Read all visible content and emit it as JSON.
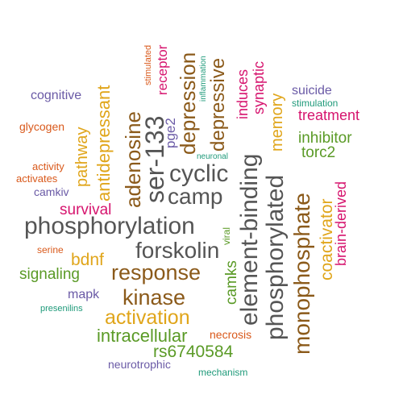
{
  "palette": {
    "grey": "#555555",
    "brown": "#8b5a1a",
    "gold": "#e0a51a",
    "green": "#5a9a26",
    "magenta": "#d6146e",
    "purple": "#6a5aa6",
    "orange": "#d9591b",
    "teal": "#1f9a7a"
  },
  "words": {
    "phosphorylation": "phosphorylation",
    "cyclic": "cyclic",
    "camp": "camp",
    "forskolin": "forskolin",
    "response": "response",
    "kinase": "kinase",
    "activation": "activation",
    "intracellular": "intracellular",
    "rs6740584": "rs6740584",
    "survival": "survival",
    "bdnf": "bdnf",
    "signaling": "signaling",
    "mapk": "mapk",
    "presenilins": "presenilins",
    "neurotrophic": "neurotrophic",
    "mechanism": "mechanism",
    "necrosis": "necrosis",
    "serine": "serine",
    "cognitive": "cognitive",
    "glycogen": "glycogen",
    "activity": "activity",
    "activates": "activates",
    "camkiv": "camkiv",
    "neuronal": "neuronal",
    "suicide": "suicide",
    "stimulation": "stimulation",
    "treatment": "treatment",
    "inhibitor": "inhibitor",
    "torc2": "torc2",
    "ser133": "ser-133",
    "adenosine": "adenosine",
    "antidepressant": "antidepressant",
    "pathway": "pathway",
    "pge2": "pge2",
    "depression": "depression",
    "depressive": "depressive",
    "receptor": "receptor",
    "stimulated": "stimulated",
    "inflammation": "inflammation",
    "induces": "induces",
    "synaptic": "synaptic",
    "memory": "memory",
    "element_binding": "element-binding",
    "phosphorylated": "phosphorylated",
    "monophosphate": "monophosphate",
    "coactivator": "coactivator",
    "brain_derived": "brain-derived",
    "viral": "viral",
    "camks": "camks"
  }
}
